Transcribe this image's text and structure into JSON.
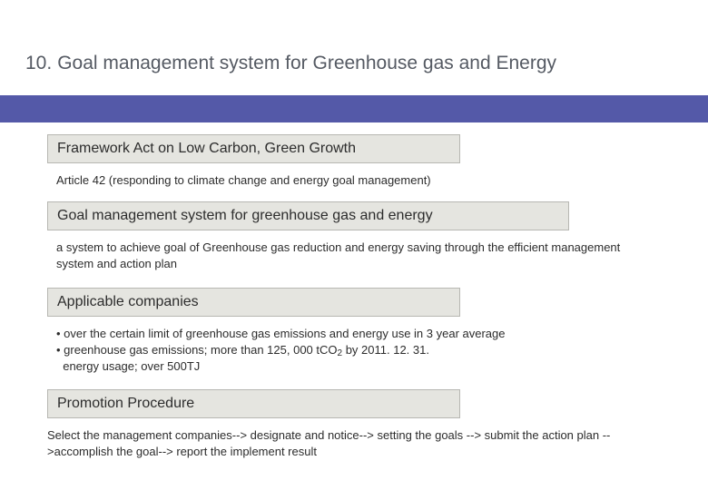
{
  "colors": {
    "accent_bar": "#5459a8",
    "heading_bg": "#e5e5e0",
    "heading_border": "#b7b7b2",
    "title_color": "#555a63",
    "body_color": "#2c2c2c",
    "page_bg": "#ffffff"
  },
  "title": {
    "number": "10.",
    "text": "Goal management system for Greenhouse gas and Energy"
  },
  "sections": [
    {
      "heading": "Framework Act on Low Carbon, Green Growth",
      "body": "Article 42 (responding to climate change and energy goal management)"
    },
    {
      "heading": "Goal management system for greenhouse gas and energy",
      "body": "a system to achieve goal of Greenhouse gas reduction and energy saving through the efficient management system and action plan"
    },
    {
      "heading": "Applicable companies",
      "body_lines": [
        "• over the certain limit of greenhouse gas emissions and energy use in 3 year average",
        "• greenhouse gas emissions; more than 125, 000 tCO2  by 2011. 12. 31.",
        "  energy usage; over 500TJ"
      ]
    },
    {
      "heading": "Promotion Procedure",
      "body": "Select the management companies--> designate and notice--> setting the goals --> submit the action plan  -->accomplish the goal--> report the implement result"
    }
  ]
}
